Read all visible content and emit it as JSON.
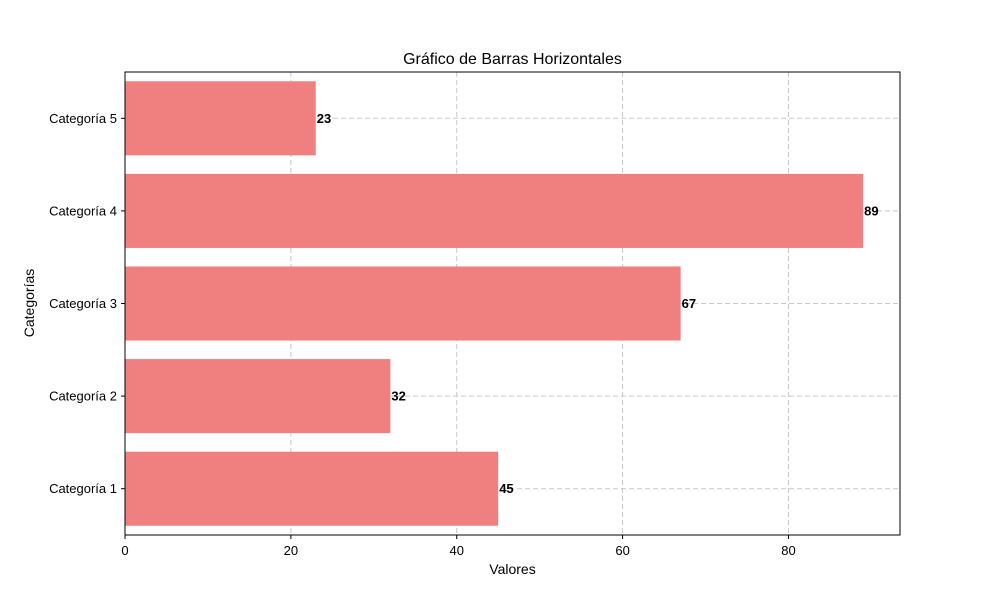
{
  "chart_data": {
    "type": "bar",
    "orientation": "horizontal",
    "title": "Gráfico de Barras Horizontales",
    "xlabel": "Valores",
    "ylabel": "Categorías",
    "categories": [
      "Categoría 1",
      "Categoría 2",
      "Categoría 3",
      "Categoría 4",
      "Categoría 5"
    ],
    "values": [
      45,
      32,
      67,
      89,
      23
    ],
    "data_labels": [
      "45",
      "32",
      "67",
      "89",
      "23"
    ],
    "xlim": [
      0,
      93.45
    ],
    "xticks": [
      0,
      20,
      40,
      60,
      80
    ],
    "xtick_labels": [
      "0",
      "20",
      "40",
      "60",
      "80"
    ],
    "grid": true,
    "grid_style": "dashed",
    "bar_color": "#f08080",
    "grid_color": "#c8c8c8"
  }
}
